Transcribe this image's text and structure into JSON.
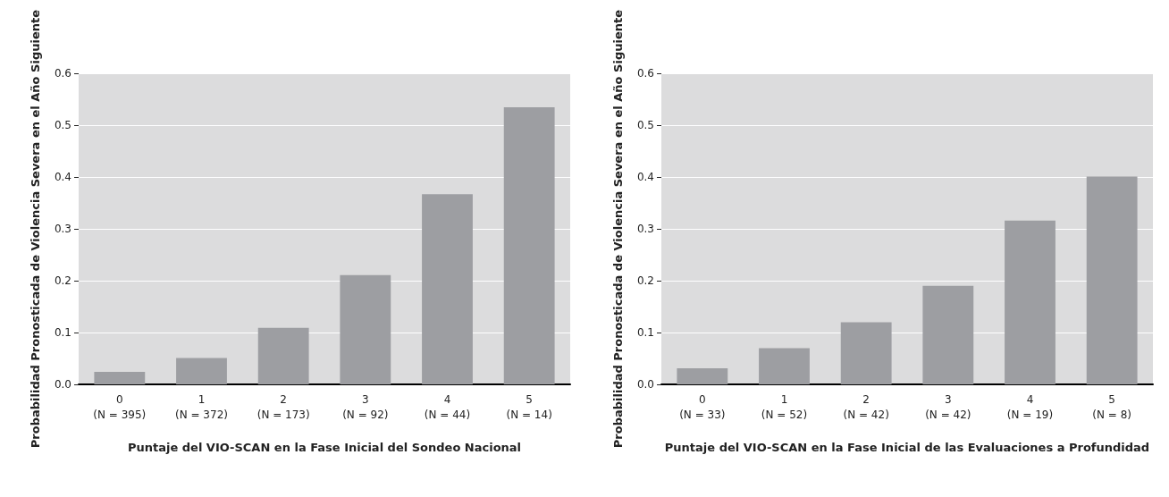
{
  "chart_data": [
    {
      "type": "bar",
      "xlabel": "Puntaje del VIO-SCAN en la Fase Inicial del Sondeo Nacional",
      "ylabel": "Probabilidad Pronosticada de Violencia Severa en el Año Siguiente",
      "categories": [
        "0\n(N = 395)",
        "1\n(N = 372)",
        "2\n(N = 173)",
        "3\n(N = 92)",
        "4\n(N = 44)",
        "5\n(N = 14)"
      ],
      "values": [
        0.024,
        0.051,
        0.109,
        0.211,
        0.367,
        0.535
      ],
      "color": "#9d9ea2",
      "ylim": [
        0,
        0.6
      ],
      "yticks": [
        {
          "value": 0,
          "label": "0.0"
        },
        0.1,
        0.2,
        0.3,
        0.4,
        0.5,
        0.6
      ],
      "grid": "y"
    },
    {
      "type": "bar",
      "xlabel": "Puntaje del VIO-SCAN en la Fase Inicial de las Evaluaciones a Profundidad",
      "ylabel": "Probabilidad Pronosticada de Violencia Severa en el Año Siguiente",
      "categories": [
        "0\n(N = 33)",
        "1\n(N = 52)",
        "2\n(N = 42)",
        "3\n(N = 42)",
        "4\n(N = 19)",
        "5\n(N = 8)"
      ],
      "values": [
        0.031,
        0.07,
        0.12,
        0.19,
        0.316,
        0.401
      ],
      "color": "#9d9ea2",
      "ylim": [
        0,
        0.6
      ],
      "yticks": [
        {
          "value": 0,
          "label": "0.0"
        },
        0.1,
        0.2,
        0.3,
        0.4,
        0.5,
        0.6
      ],
      "grid": "y"
    }
  ]
}
